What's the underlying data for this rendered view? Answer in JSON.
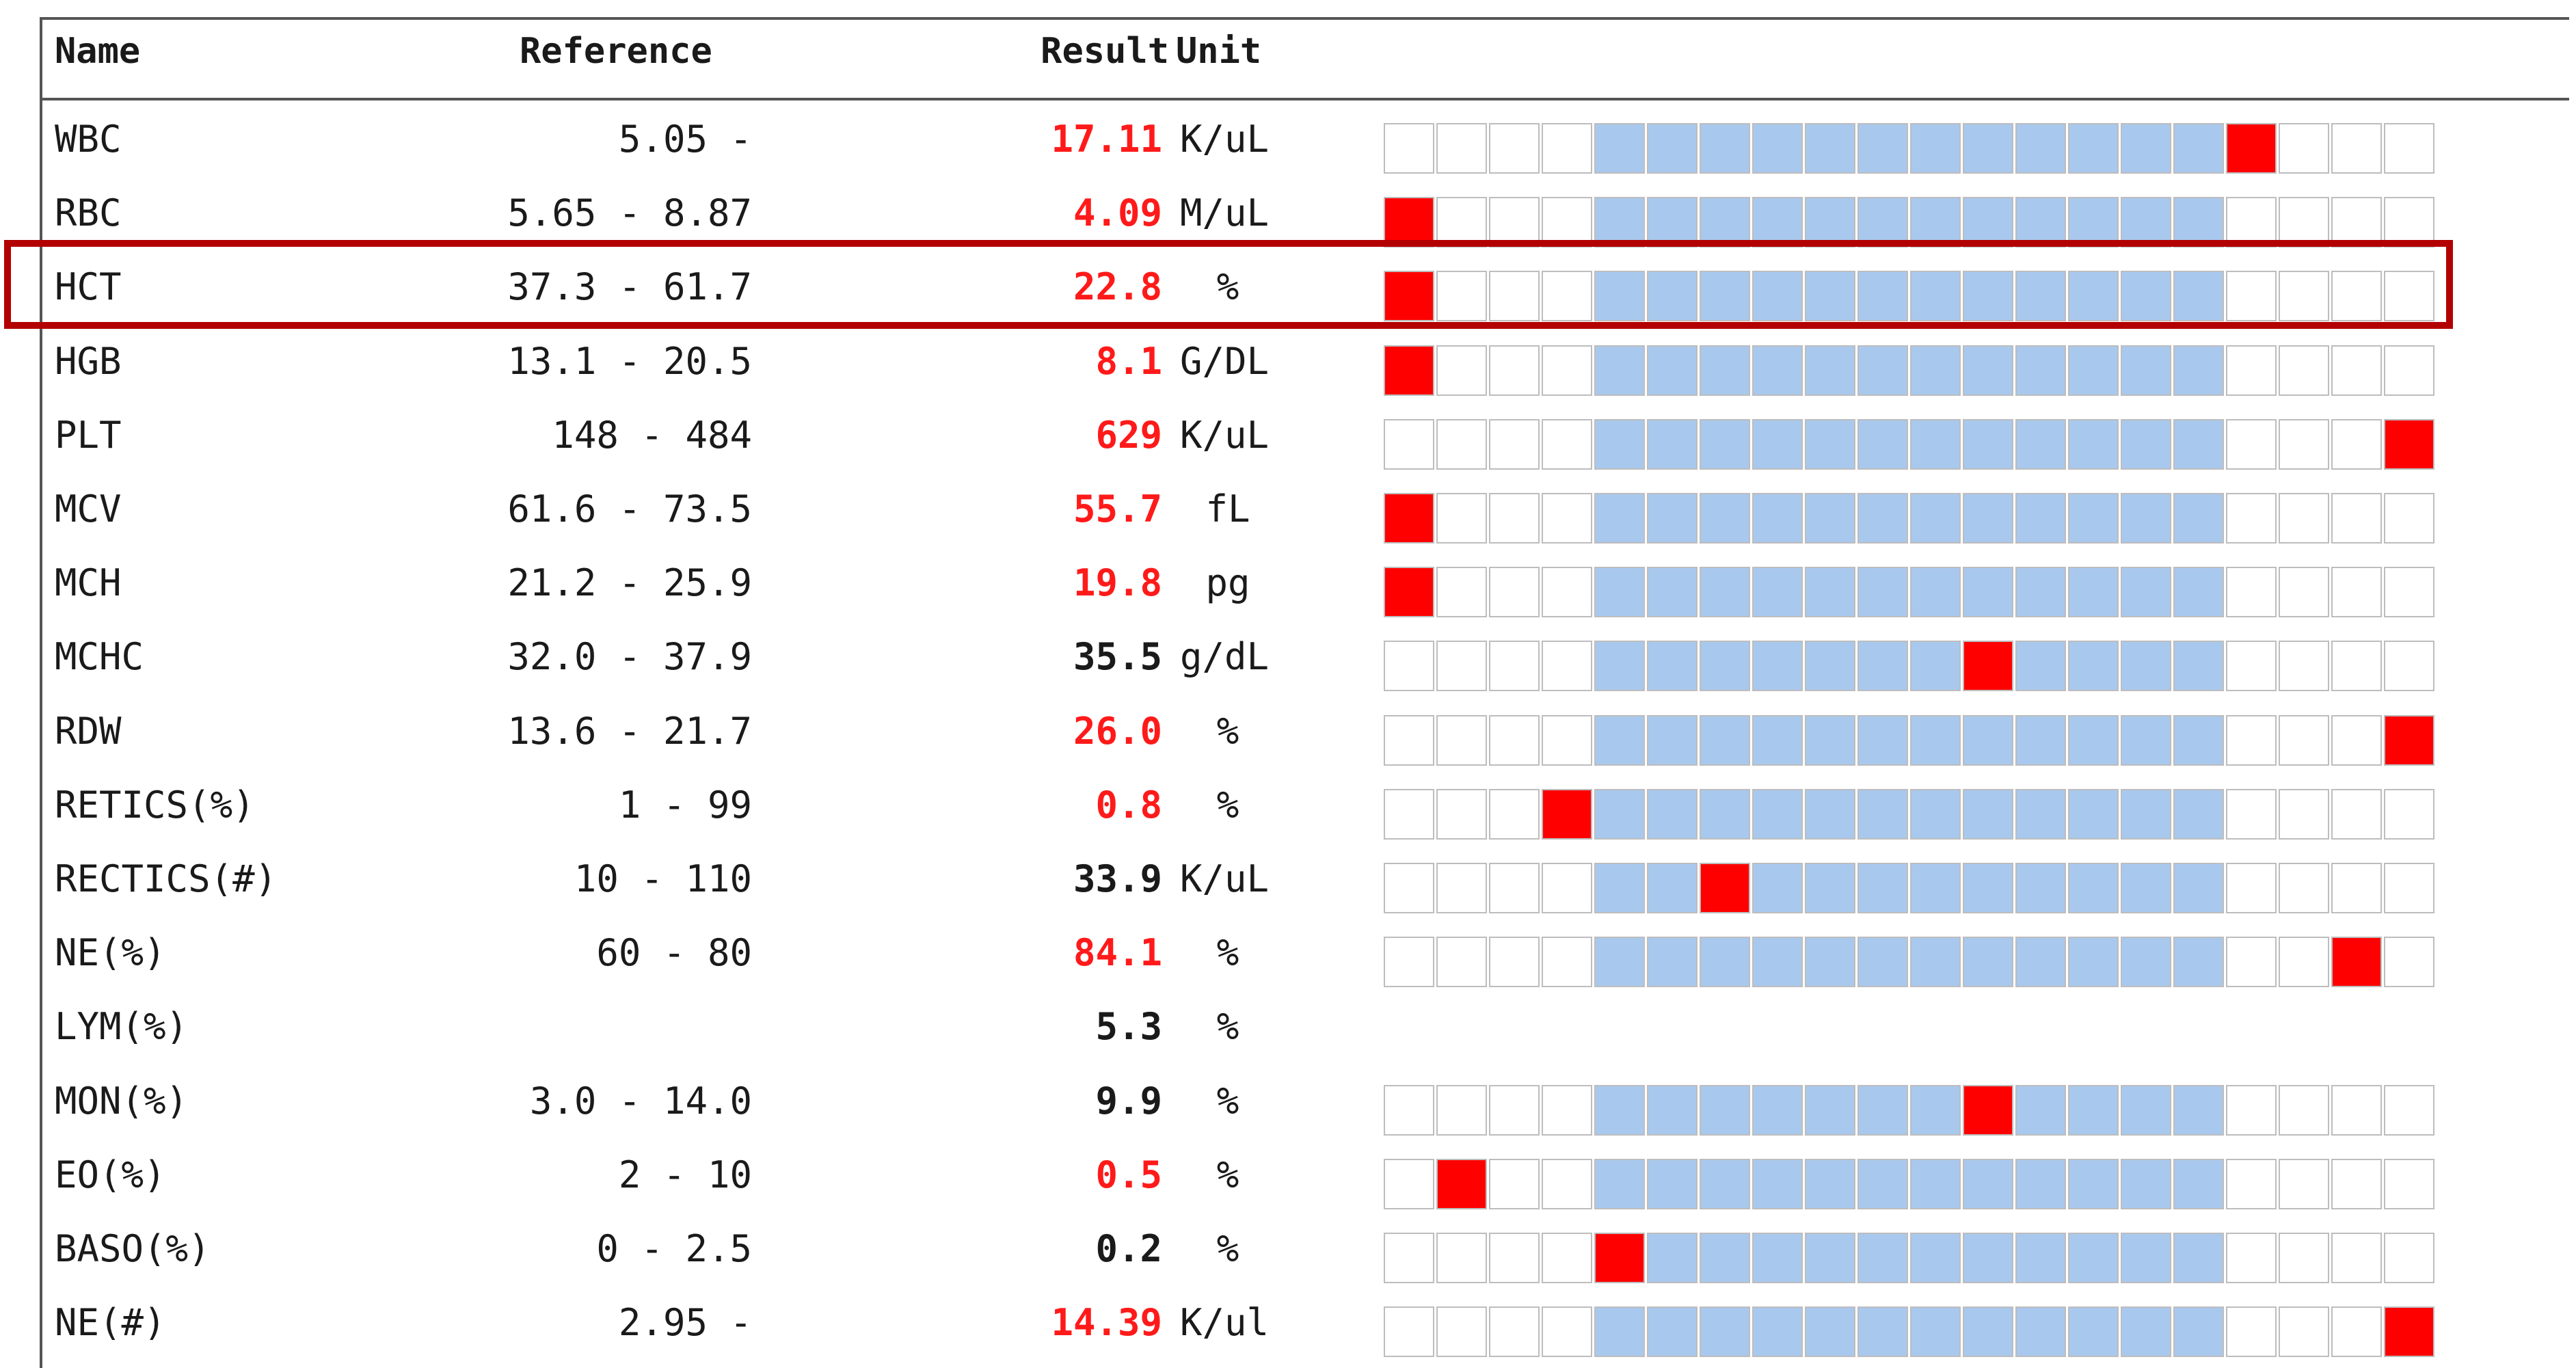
{
  "table": {
    "headers": {
      "name": "Name",
      "reference": "Reference",
      "result": "Result",
      "unit": "Unit"
    },
    "bar_segments": 20,
    "bar_normal_range_segments": [
      4,
      15
    ],
    "rows": [
      {
        "name": "WBC",
        "reference": "5.05 -",
        "result": "17.11",
        "unit": "K/uL",
        "abnormal": true,
        "marker_segment": 16
      },
      {
        "name": "RBC",
        "reference": "5.65 - 8.87",
        "result": "4.09",
        "unit": "M/uL",
        "abnormal": true,
        "marker_segment": 0
      },
      {
        "name": "HCT",
        "reference": "37.3 - 61.7",
        "result": "22.8",
        "unit": "%",
        "abnormal": true,
        "marker_segment": 0,
        "highlighted": true
      },
      {
        "name": "HGB",
        "reference": "13.1 - 20.5",
        "result": "8.1",
        "unit": "G/DL",
        "abnormal": true,
        "marker_segment": 0
      },
      {
        "name": "PLT",
        "reference": "148 - 484",
        "result": "629",
        "unit": "K/uL",
        "abnormal": true,
        "marker_segment": 19
      },
      {
        "name": "MCV",
        "reference": "61.6 - 73.5",
        "result": "55.7",
        "unit": "fL",
        "abnormal": true,
        "marker_segment": 0
      },
      {
        "name": "MCH",
        "reference": "21.2 - 25.9",
        "result": "19.8",
        "unit": "pg",
        "abnormal": true,
        "marker_segment": 0
      },
      {
        "name": "MCHC",
        "reference": "32.0 - 37.9",
        "result": "35.5",
        "unit": "g/dL",
        "abnormal": false,
        "marker_segment": 11
      },
      {
        "name": "RDW",
        "reference": "13.6 - 21.7",
        "result": "26.0",
        "unit": "%",
        "abnormal": true,
        "marker_segment": 19
      },
      {
        "name": "RETICS(%)",
        "reference": "1 - 99",
        "result": "0.8",
        "unit": "%",
        "abnormal": true,
        "marker_segment": 3
      },
      {
        "name": "RECTICS(#)",
        "reference": "10 - 110",
        "result": "33.9",
        "unit": "K/uL",
        "abnormal": false,
        "marker_segment": 6
      },
      {
        "name": "NE(%)",
        "reference": "60 - 80",
        "result": "84.1",
        "unit": "%",
        "abnormal": true,
        "marker_segment": 18
      },
      {
        "name": "LYM(%)",
        "reference": "",
        "result": "5.3",
        "unit": "%",
        "abnormal": false,
        "marker_segment": null
      },
      {
        "name": "MON(%)",
        "reference": "3.0 - 14.0",
        "result": "9.9",
        "unit": "%",
        "abnormal": false,
        "marker_segment": 11
      },
      {
        "name": "EO(%)",
        "reference": "2 - 10",
        "result": "0.5",
        "unit": "%",
        "abnormal": true,
        "marker_segment": 1
      },
      {
        "name": "BASO(%)",
        "reference": "0 - 2.5",
        "result": "0.2",
        "unit": "%",
        "abnormal": false,
        "marker_segment": 4
      },
      {
        "name": "NE(#)",
        "reference": "2.95 -",
        "result": "14.39",
        "unit": "K/ul",
        "abnormal": true,
        "marker_segment": 19
      }
    ]
  },
  "colors": {
    "abnormal_result": "#ff1a1a",
    "normal_range_fill": "#a9c8ee",
    "marker_fill": "#ff0000",
    "highlight_border": "#b30000"
  }
}
